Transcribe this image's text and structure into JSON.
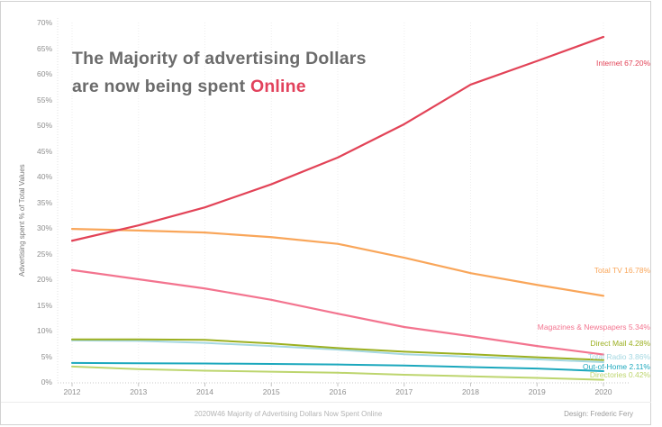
{
  "title": {
    "line1": "The Majority of advertising Dollars",
    "line2_prefix": "are now being spent ",
    "highlight": "Online",
    "color": "#6b6b6b",
    "highlight_color": "#e2425c"
  },
  "y_axis": {
    "title": "Advertising spent % of Total Values",
    "ticks": [
      "0%",
      "5%",
      "10%",
      "15%",
      "20%",
      "25%",
      "30%",
      "35%",
      "40%",
      "45%",
      "50%",
      "55%",
      "60%",
      "65%",
      "70%"
    ],
    "tick_values": [
      0,
      5,
      10,
      15,
      20,
      25,
      30,
      35,
      40,
      45,
      50,
      55,
      60,
      65,
      70
    ]
  },
  "x_axis": {
    "categories": [
      "2012",
      "2013",
      "2014",
      "2015",
      "2016",
      "2017",
      "2018",
      "2019",
      "2020"
    ]
  },
  "chart_data": {
    "type": "line",
    "title": "The Majority of advertising Dollars are now being spent Online",
    "xlabel": "",
    "ylabel": "Advertising spent % of Total Values",
    "ylim": [
      0,
      70
    ],
    "x": [
      2012,
      2013,
      2014,
      2015,
      2016,
      2017,
      2018,
      2019,
      2020
    ],
    "grid": "faint dotted vertical per year",
    "legend_position": "right-end-labels",
    "series": [
      {
        "name": "Internet",
        "label": "Internet 67.20%",
        "final_value": 67.2,
        "color": "#e24357",
        "values": [
          27.5,
          30.5,
          34.0,
          38.5,
          43.7,
          50.2,
          57.9,
          62.5,
          67.2
        ]
      },
      {
        "name": "Total TV",
        "label": "Total TV 16.78%",
        "final_value": 16.78,
        "color": "#f9a65a",
        "values": [
          29.8,
          29.5,
          29.1,
          28.2,
          26.9,
          24.2,
          21.2,
          18.9,
          16.78
        ]
      },
      {
        "name": "Magazines & Newspapers",
        "label": "Magazines & Newspapers 5.34%",
        "final_value": 5.34,
        "color": "#f3748f",
        "values": [
          21.8,
          20.0,
          18.2,
          16.0,
          13.3,
          10.7,
          8.9,
          7.0,
          5.34
        ]
      },
      {
        "name": "Direct Mail",
        "label": "Direct Mail 4.28%",
        "final_value": 4.28,
        "color": "#9cb021",
        "values": [
          8.3,
          8.3,
          8.2,
          7.5,
          6.6,
          5.9,
          5.4,
          4.8,
          4.28
        ]
      },
      {
        "name": "Total Radio",
        "label": "Total Radio 3.86%",
        "final_value": 3.86,
        "color": "#a5d8e2",
        "values": [
          8.1,
          8.0,
          7.6,
          7.0,
          6.3,
          5.4,
          4.9,
          4.4,
          3.86
        ]
      },
      {
        "name": "Out-of-Home",
        "label": "Out-of-Home 2.11%",
        "final_value": 2.11,
        "color": "#1ca8bd",
        "values": [
          3.7,
          3.65,
          3.6,
          3.5,
          3.4,
          3.2,
          2.9,
          2.6,
          2.11
        ]
      },
      {
        "name": "Directories",
        "label": "Directories 0.42%",
        "final_value": 0.42,
        "color": "#bdd56e",
        "values": [
          3.0,
          2.5,
          2.2,
          2.0,
          1.8,
          1.4,
          1.1,
          0.8,
          0.42
        ]
      }
    ]
  },
  "footer": {
    "caption": "2020W46 Majority of Advertising Dollars Now Spent Online",
    "credit": "Design: Frederic Fery"
  }
}
